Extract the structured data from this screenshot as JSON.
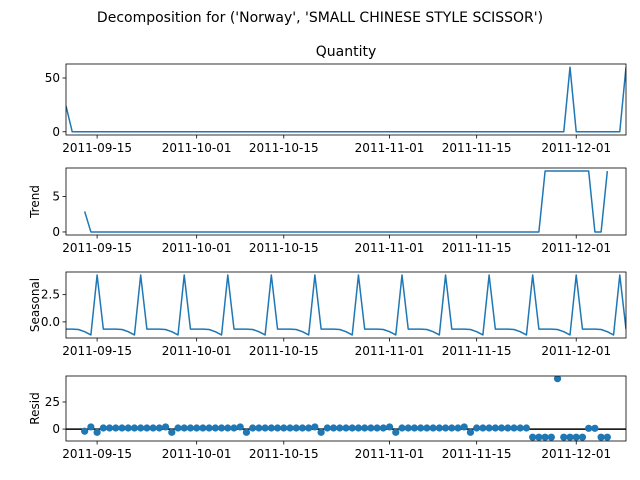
{
  "figure": {
    "title": "Decomposition for ('Norway', 'SMALL CHINESE STYLE SCISSOR')"
  },
  "colors": {
    "series": "#1f77b4",
    "axis": "#000000"
  },
  "chart_data": [
    {
      "type": "line",
      "name": "observed",
      "title": "Quantity",
      "ylabel": "",
      "x_dates": [
        "2011-09-10",
        "2011-09-11",
        "2011-09-12",
        "2011-09-13",
        "2011-09-14",
        "2011-09-15",
        "2011-09-16",
        "2011-09-17",
        "2011-09-18",
        "2011-09-19",
        "2011-09-20",
        "2011-09-21",
        "2011-09-22",
        "2011-09-23",
        "2011-09-24",
        "2011-09-25",
        "2011-09-26",
        "2011-09-27",
        "2011-09-28",
        "2011-09-29",
        "2011-09-30",
        "2011-10-01",
        "2011-10-02",
        "2011-10-03",
        "2011-10-04",
        "2011-10-05",
        "2011-10-06",
        "2011-10-07",
        "2011-10-08",
        "2011-10-09",
        "2011-10-10",
        "2011-10-11",
        "2011-10-12",
        "2011-10-13",
        "2011-10-14",
        "2011-10-15",
        "2011-10-16",
        "2011-10-17",
        "2011-10-18",
        "2011-10-19",
        "2011-10-20",
        "2011-10-21",
        "2011-10-22",
        "2011-10-23",
        "2011-10-24",
        "2011-10-25",
        "2011-10-26",
        "2011-10-27",
        "2011-10-28",
        "2011-10-29",
        "2011-10-30",
        "2011-10-31",
        "2011-11-01",
        "2011-11-02",
        "2011-11-03",
        "2011-11-04",
        "2011-11-05",
        "2011-11-06",
        "2011-11-07",
        "2011-11-08",
        "2011-11-09",
        "2011-11-10",
        "2011-11-11",
        "2011-11-12",
        "2011-11-13",
        "2011-11-14",
        "2011-11-15",
        "2011-11-16",
        "2011-11-17",
        "2011-11-18",
        "2011-11-19",
        "2011-11-20",
        "2011-11-21",
        "2011-11-22",
        "2011-11-23",
        "2011-11-24",
        "2011-11-25",
        "2011-11-26",
        "2011-11-27",
        "2011-11-28",
        "2011-11-29",
        "2011-11-30",
        "2011-12-01",
        "2011-12-02",
        "2011-12-03",
        "2011-12-04",
        "2011-12-05",
        "2011-12-06",
        "2011-12-07",
        "2011-12-08",
        "2011-12-09"
      ],
      "values": [
        24,
        0,
        0,
        0,
        0,
        0,
        0,
        0,
        0,
        0,
        0,
        0,
        0,
        0,
        0,
        0,
        0,
        0,
        0,
        0,
        0,
        0,
        0,
        0,
        0,
        0,
        0,
        0,
        0,
        0,
        0,
        0,
        0,
        0,
        0,
        0,
        0,
        0,
        0,
        0,
        0,
        0,
        0,
        0,
        0,
        0,
        0,
        0,
        0,
        0,
        0,
        0,
        0,
        0,
        0,
        0,
        0,
        0,
        0,
        0,
        0,
        0,
        0,
        0,
        0,
        0,
        0,
        0,
        0,
        0,
        0,
        0,
        0,
        0,
        0,
        0,
        0,
        0,
        0,
        0,
        0,
        60,
        0,
        0,
        0,
        0,
        0,
        0,
        0,
        0,
        60
      ],
      "yticks": [
        0,
        50
      ],
      "ylim": [
        -3,
        63
      ],
      "xlim": [
        "2011-09-10",
        "2011-12-09"
      ],
      "xtick_labels": [
        "2011-09-15",
        "2011-10-01",
        "2011-10-15",
        "2011-11-01",
        "2011-11-15",
        "2011-12-01"
      ]
    },
    {
      "type": "line",
      "name": "trend",
      "title": "",
      "ylabel": "Trend",
      "x_dates": [
        "2011-09-13",
        "2011-09-14",
        "2011-09-15",
        "2011-09-16",
        "2011-09-17",
        "2011-09-18",
        "2011-09-19",
        "2011-09-20",
        "2011-09-21",
        "2011-09-22",
        "2011-09-23",
        "2011-09-24",
        "2011-09-25",
        "2011-09-26",
        "2011-09-27",
        "2011-09-28",
        "2011-09-29",
        "2011-09-30",
        "2011-10-01",
        "2011-10-02",
        "2011-10-03",
        "2011-10-04",
        "2011-10-05",
        "2011-10-06",
        "2011-10-07",
        "2011-10-08",
        "2011-10-09",
        "2011-10-10",
        "2011-10-11",
        "2011-10-12",
        "2011-10-13",
        "2011-10-14",
        "2011-10-15",
        "2011-10-16",
        "2011-10-17",
        "2011-10-18",
        "2011-10-19",
        "2011-10-20",
        "2011-10-21",
        "2011-10-22",
        "2011-10-23",
        "2011-10-24",
        "2011-10-25",
        "2011-10-26",
        "2011-10-27",
        "2011-10-28",
        "2011-10-29",
        "2011-10-30",
        "2011-10-31",
        "2011-11-01",
        "2011-11-02",
        "2011-11-03",
        "2011-11-04",
        "2011-11-05",
        "2011-11-06",
        "2011-11-07",
        "2011-11-08",
        "2011-11-09",
        "2011-11-10",
        "2011-11-11",
        "2011-11-12",
        "2011-11-13",
        "2011-11-14",
        "2011-11-15",
        "2011-11-16",
        "2011-11-17",
        "2011-11-18",
        "2011-11-19",
        "2011-11-20",
        "2011-11-21",
        "2011-11-22",
        "2011-11-23",
        "2011-11-24",
        "2011-11-25",
        "2011-11-26",
        "2011-11-27",
        "2011-11-28",
        "2011-11-29",
        "2011-11-30",
        "2011-12-01",
        "2011-12-02",
        "2011-12-03",
        "2011-12-04",
        "2011-12-05",
        "2011-12-06"
      ],
      "values": [
        2.9,
        0,
        0,
        0,
        0,
        0,
        0,
        0,
        0,
        0,
        0,
        0,
        0,
        0,
        0,
        0,
        0,
        0,
        0,
        0,
        0,
        0,
        0,
        0,
        0,
        0,
        0,
        0,
        0,
        0,
        0,
        0,
        0,
        0,
        0,
        0,
        0,
        0,
        0,
        0,
        0,
        0,
        0,
        0,
        0,
        0,
        0,
        0,
        0,
        0,
        0,
        0,
        0,
        0,
        0,
        0,
        0,
        0,
        0,
        0,
        0,
        0,
        0,
        0,
        0,
        0,
        0,
        0,
        0,
        0,
        0,
        0,
        0,
        0,
        8.6,
        8.6,
        8.6,
        8.6,
        8.6,
        8.6,
        8.6,
        8.6,
        0,
        0,
        8.6
      ],
      "yticks": [
        0,
        5
      ],
      "ylim": [
        -0.43,
        9.03
      ],
      "xlim": [
        "2011-09-10",
        "2011-12-09"
      ],
      "xtick_labels": [
        "2011-09-15",
        "2011-10-01",
        "2011-10-15",
        "2011-11-01",
        "2011-11-15",
        "2011-12-01"
      ]
    },
    {
      "type": "line",
      "name": "seasonal",
      "title": "",
      "ylabel": "Seasonal",
      "x_dates": [
        "2011-09-10",
        "2011-09-11",
        "2011-09-12",
        "2011-09-13",
        "2011-09-14",
        "2011-09-15",
        "2011-09-16",
        "2011-09-17",
        "2011-09-18",
        "2011-09-19",
        "2011-09-20",
        "2011-09-21",
        "2011-09-22",
        "2011-09-23",
        "2011-09-24",
        "2011-09-25",
        "2011-09-26",
        "2011-09-27",
        "2011-09-28",
        "2011-09-29",
        "2011-09-30",
        "2011-10-01",
        "2011-10-02",
        "2011-10-03",
        "2011-10-04",
        "2011-10-05",
        "2011-10-06",
        "2011-10-07",
        "2011-10-08",
        "2011-10-09",
        "2011-10-10",
        "2011-10-11",
        "2011-10-12",
        "2011-10-13",
        "2011-10-14",
        "2011-10-15",
        "2011-10-16",
        "2011-10-17",
        "2011-10-18",
        "2011-10-19",
        "2011-10-20",
        "2011-10-21",
        "2011-10-22",
        "2011-10-23",
        "2011-10-24",
        "2011-10-25",
        "2011-10-26",
        "2011-10-27",
        "2011-10-28",
        "2011-10-29",
        "2011-10-30",
        "2011-10-31",
        "2011-11-01",
        "2011-11-02",
        "2011-11-03",
        "2011-11-04",
        "2011-11-05",
        "2011-11-06",
        "2011-11-07",
        "2011-11-08",
        "2011-11-09",
        "2011-11-10",
        "2011-11-11",
        "2011-11-12",
        "2011-11-13",
        "2011-11-14",
        "2011-11-15",
        "2011-11-16",
        "2011-11-17",
        "2011-11-18",
        "2011-11-19",
        "2011-11-20",
        "2011-11-21",
        "2011-11-22",
        "2011-11-23",
        "2011-11-24",
        "2011-11-25",
        "2011-11-26",
        "2011-11-27",
        "2011-11-28",
        "2011-11-29",
        "2011-11-30",
        "2011-12-01",
        "2011-12-02",
        "2011-12-03",
        "2011-12-04",
        "2011-12-05",
        "2011-12-06",
        "2011-12-07",
        "2011-12-08",
        "2011-12-09"
      ],
      "values": [
        -0.66,
        -0.66,
        -0.7,
        -0.9,
        -1.2,
        4.3,
        -0.66,
        -0.66,
        -0.66,
        -0.7,
        -0.9,
        -1.2,
        4.3,
        -0.66,
        -0.66,
        -0.66,
        -0.7,
        -0.9,
        -1.2,
        4.3,
        -0.66,
        -0.66,
        -0.66,
        -0.7,
        -0.9,
        -1.2,
        4.3,
        -0.66,
        -0.66,
        -0.66,
        -0.7,
        -0.9,
        -1.2,
        4.3,
        -0.66,
        -0.66,
        -0.66,
        -0.7,
        -0.9,
        -1.2,
        4.3,
        -0.66,
        -0.66,
        -0.66,
        -0.7,
        -0.9,
        -1.2,
        4.3,
        -0.66,
        -0.66,
        -0.66,
        -0.7,
        -0.9,
        -1.2,
        4.3,
        -0.66,
        -0.66,
        -0.66,
        -0.7,
        -0.9,
        -1.2,
        4.3,
        -0.66,
        -0.66,
        -0.66,
        -0.7,
        -0.9,
        -1.2,
        4.3,
        -0.66,
        -0.66,
        -0.66,
        -0.7,
        -0.9,
        -1.2,
        4.3,
        -0.66,
        -0.66,
        -0.66,
        -0.7,
        -0.9,
        -1.2,
        4.3,
        -0.66,
        -0.66,
        -0.66,
        -0.7,
        -0.9,
        -1.2,
        4.3,
        -0.66
      ],
      "yticks": [
        0.0,
        2.5
      ],
      "ytick_labels": [
        "0.0",
        "2.5"
      ],
      "ylim": [
        -1.48,
        4.58
      ],
      "xlim": [
        "2011-09-10",
        "2011-12-09"
      ],
      "xtick_labels": [
        "2011-09-15",
        "2011-10-01",
        "2011-10-15",
        "2011-11-01",
        "2011-11-15",
        "2011-12-01"
      ]
    },
    {
      "type": "scatter",
      "name": "resid",
      "title": "",
      "ylabel": "Resid",
      "x_dates": [
        "2011-09-13",
        "2011-09-14",
        "2011-09-15",
        "2011-09-16",
        "2011-09-17",
        "2011-09-18",
        "2011-09-19",
        "2011-09-20",
        "2011-09-21",
        "2011-09-22",
        "2011-09-23",
        "2011-09-24",
        "2011-09-25",
        "2011-09-26",
        "2011-09-27",
        "2011-09-28",
        "2011-09-29",
        "2011-09-30",
        "2011-10-01",
        "2011-10-02",
        "2011-10-03",
        "2011-10-04",
        "2011-10-05",
        "2011-10-06",
        "2011-10-07",
        "2011-10-08",
        "2011-10-09",
        "2011-10-10",
        "2011-10-11",
        "2011-10-12",
        "2011-10-13",
        "2011-10-14",
        "2011-10-15",
        "2011-10-16",
        "2011-10-17",
        "2011-10-18",
        "2011-10-19",
        "2011-10-20",
        "2011-10-21",
        "2011-10-22",
        "2011-10-23",
        "2011-10-24",
        "2011-10-25",
        "2011-10-26",
        "2011-10-27",
        "2011-10-28",
        "2011-10-29",
        "2011-10-30",
        "2011-10-31",
        "2011-11-01",
        "2011-11-02",
        "2011-11-03",
        "2011-11-04",
        "2011-11-05",
        "2011-11-06",
        "2011-11-07",
        "2011-11-08",
        "2011-11-09",
        "2011-11-10",
        "2011-11-11",
        "2011-11-12",
        "2011-11-13",
        "2011-11-14",
        "2011-11-15",
        "2011-11-16",
        "2011-11-17",
        "2011-11-18",
        "2011-11-19",
        "2011-11-20",
        "2011-11-21",
        "2011-11-22",
        "2011-11-23",
        "2011-11-24",
        "2011-11-25",
        "2011-11-26",
        "2011-11-27",
        "2011-11-28",
        "2011-11-29",
        "2011-11-30",
        "2011-12-01",
        "2011-12-02",
        "2011-12-03",
        "2011-12-04",
        "2011-12-05",
        "2011-12-06"
      ],
      "values": [
        -2,
        2,
        -3,
        1,
        1,
        1,
        1,
        1,
        1,
        1,
        1,
        1,
        1,
        2,
        -3,
        1,
        1,
        1,
        1,
        1,
        1,
        1,
        1,
        1,
        1,
        2,
        -3,
        1,
        1,
        1,
        1,
        1,
        1,
        1,
        1,
        1,
        1,
        2,
        -3,
        1,
        1,
        1,
        1,
        1,
        1,
        1,
        1,
        1,
        1,
        2,
        -3,
        1,
        1,
        1,
        1,
        1,
        1,
        1,
        1,
        1,
        1,
        2,
        -3,
        1,
        1,
        1,
        1,
        1,
        1,
        1,
        1,
        1,
        -7.5,
        -7.5,
        -7.5,
        -7.5,
        46.5,
        -7.5,
        -7.5,
        -7.5,
        -7.5,
        0.7,
        0.7,
        -7.5,
        -7.5
      ],
      "zero_line": true,
      "yticks": [
        0,
        25
      ],
      "ylim": [
        -11,
        49
      ],
      "xlim": [
        "2011-09-10",
        "2011-12-09"
      ],
      "xtick_labels": [
        "2011-09-15",
        "2011-10-01",
        "2011-10-15",
        "2011-11-01",
        "2011-11-15",
        "2011-12-01"
      ]
    }
  ]
}
